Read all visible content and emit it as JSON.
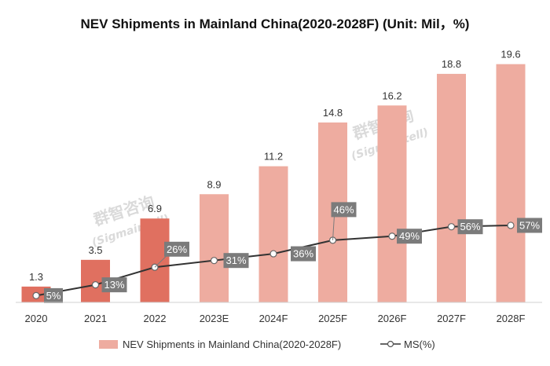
{
  "chart_data": {
    "type": "bar",
    "title": "NEV Shipments in Mainland China(2020-2028F) (Unit: Mil，%)",
    "categories": [
      "2020",
      "2021",
      "2022",
      "2023E",
      "2024F",
      "2025F",
      "2026F",
      "2027F",
      "2028F"
    ],
    "series": [
      {
        "name": "NEV Shipments in Mainland China(2020-2028F)",
        "type": "bar",
        "values": [
          1.3,
          3.5,
          6.9,
          8.9,
          11.2,
          14.8,
          16.2,
          18.8,
          19.6
        ],
        "value_labels": [
          "1.3",
          "3.5",
          "6.9",
          "8.9",
          "11.2",
          "14.8",
          "16.2",
          "18.8",
          "19.6"
        ]
      },
      {
        "name": "MS(%)",
        "type": "line",
        "values": [
          5,
          13,
          26,
          31,
          36,
          46,
          49,
          56,
          57
        ],
        "value_labels": [
          "5%",
          "13%",
          "26%",
          "31%",
          "36%",
          "46%",
          "49%",
          "56%",
          "57%"
        ]
      }
    ],
    "ylim": [
      0,
      21
    ],
    "ylim_secondary": [
      0,
      100
    ],
    "grid": false,
    "legend_position": "bottom",
    "colors": {
      "actual_bar": "#e07060",
      "forecast_bar": "#eeaca0",
      "line": "#333333",
      "label_box": "#7b7b7b"
    },
    "actual_count": 3
  },
  "watermark": {
    "chinese": "群智咨询",
    "english": "(Sigmaintell)"
  }
}
